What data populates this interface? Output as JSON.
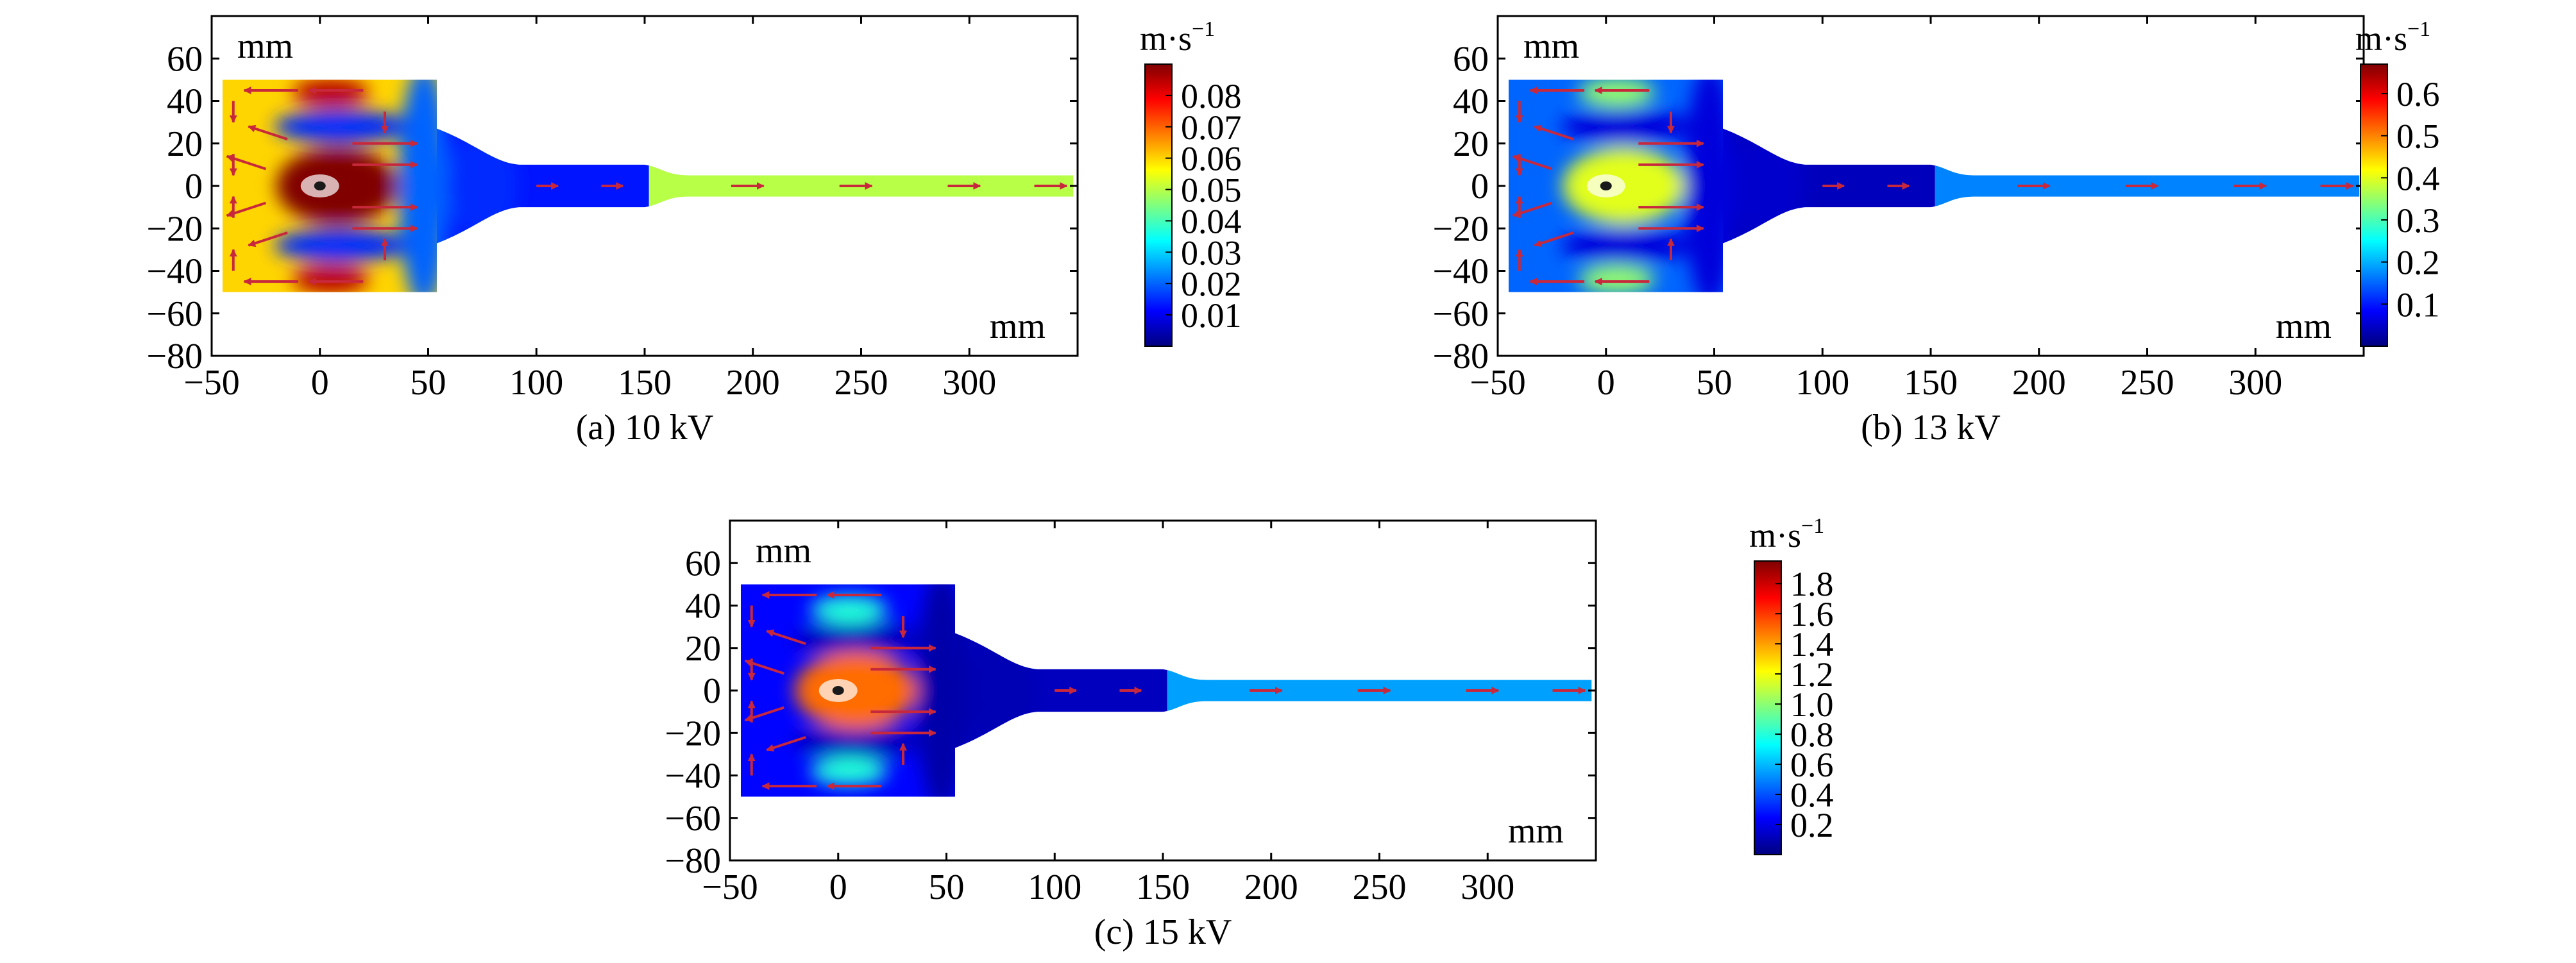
{
  "chart_data": [
    {
      "type": "heatmap",
      "panel_label": "(a) 10 kV",
      "voltage": "10 kV",
      "axis_unit_label": "mm",
      "colorbar_unit": "m·s",
      "colorbar_exponent": "−1",
      "xlim": [
        -50,
        350
      ],
      "ylim": [
        -80,
        80
      ],
      "x_ticks": [
        -50,
        0,
        50,
        100,
        150,
        200,
        250,
        300
      ],
      "x_tick_labels": [
        "−50",
        "0",
        "50",
        "100",
        "150",
        "200",
        "250",
        "300"
      ],
      "y_ticks": [
        60,
        40,
        20,
        0,
        -20,
        -40,
        -60,
        -80
      ],
      "y_tick_labels": [
        "60",
        "40",
        "20",
        "0",
        "−20",
        "−40",
        "−60",
        "−80"
      ],
      "colorbar_range": [
        0.0,
        0.09
      ],
      "colorbar_ticks": [
        0.08,
        0.07,
        0.06,
        0.05,
        0.04,
        0.03,
        0.02,
        0.01
      ],
      "colorbar_tick_labels": [
        "0.08",
        "0.07",
        "0.06",
        "0.05",
        "0.04",
        "0.03",
        "0.02",
        "0.01"
      ],
      "field_levels": {
        "chamber_background": 0.06,
        "core": 0.09,
        "hot_spots": 0.085,
        "vortex_band": 0.015,
        "edge_zone": 0.02,
        "nozzle": 0.015,
        "duct": 0.013,
        "outlet_tube": 0.05
      },
      "vortex_band_y": [
        28,
        -28
      ],
      "hot_spot_y": [
        44,
        -44
      ]
    },
    {
      "type": "heatmap",
      "panel_label": "(b) 13 kV",
      "voltage": "13 kV",
      "axis_unit_label": "mm",
      "colorbar_unit": "m·s",
      "colorbar_exponent": "−1",
      "xlim": [
        -50,
        350
      ],
      "ylim": [
        -80,
        80
      ],
      "x_ticks": [
        -50,
        0,
        50,
        100,
        150,
        200,
        250,
        300
      ],
      "x_tick_labels": [
        "−50",
        "0",
        "50",
        "100",
        "150",
        "200",
        "250",
        "300"
      ],
      "y_ticks": [
        60,
        40,
        20,
        0,
        -20,
        -40,
        -60,
        -80
      ],
      "y_tick_labels": [
        "60",
        "40",
        "20",
        "0",
        "−20",
        "−40",
        "−60",
        "−80"
      ],
      "colorbar_range": [
        0.0,
        0.67
      ],
      "colorbar_ticks": [
        0.6,
        0.5,
        0.4,
        0.3,
        0.2,
        0.1
      ],
      "colorbar_tick_labels": [
        "0.6",
        "0.5",
        "0.4",
        "0.3",
        "0.2",
        "0.1"
      ],
      "field_levels": {
        "chamber_background": 0.15,
        "core": 0.4,
        "hot_spots": 0.35,
        "vortex_band": 0.06,
        "edge_zone": 0.06,
        "nozzle": 0.05,
        "duct": 0.04,
        "outlet_tube": 0.17
      },
      "vortex_band_y": [
        28,
        -28
      ],
      "hot_spot_y": [
        44,
        -44
      ]
    },
    {
      "type": "heatmap",
      "panel_label": "(c) 15 kV",
      "voltage": "15 kV",
      "axis_unit_label": "mm",
      "colorbar_unit": "m·s",
      "colorbar_exponent": "−1",
      "xlim": [
        -50,
        350
      ],
      "ylim": [
        -80,
        80
      ],
      "x_ticks": [
        -50,
        0,
        50,
        100,
        150,
        200,
        250,
        300
      ],
      "x_tick_labels": [
        "−50",
        "0",
        "50",
        "100",
        "150",
        "200",
        "250",
        "300"
      ],
      "y_ticks": [
        60,
        40,
        20,
        0,
        -20,
        -40,
        -60,
        -80
      ],
      "y_tick_labels": [
        "60",
        "40",
        "20",
        "0",
        "−20",
        "−40",
        "−60",
        "−80"
      ],
      "colorbar_range": [
        0.0,
        1.95
      ],
      "colorbar_ticks": [
        1.8,
        1.6,
        1.4,
        1.2,
        1.0,
        0.8,
        0.6,
        0.4,
        0.2
      ],
      "colorbar_tick_labels": [
        "1.8",
        "1.6",
        "1.4",
        "1.2",
        "1.0",
        "0.8",
        "0.6",
        "0.4",
        "0.2"
      ],
      "field_levels": {
        "chamber_background": 0.25,
        "core": 1.5,
        "hot_spots": 0.8,
        "vortex_band": 0.12,
        "edge_zone": 0.08,
        "nozzle": 0.1,
        "duct": 0.12,
        "outlet_tube": 0.55
      },
      "vortex_band_y": [
        24,
        -24
      ],
      "hot_spot_y": [
        38,
        -38
      ]
    }
  ],
  "colors": {
    "arrow": "#c8283c",
    "frame": "#000000",
    "colormap": [
      "#00007f",
      "#0000ff",
      "#007fff",
      "#00ffff",
      "#7fff7f",
      "#ffff00",
      "#ff7f00",
      "#ff0000",
      "#7f0000"
    ]
  }
}
